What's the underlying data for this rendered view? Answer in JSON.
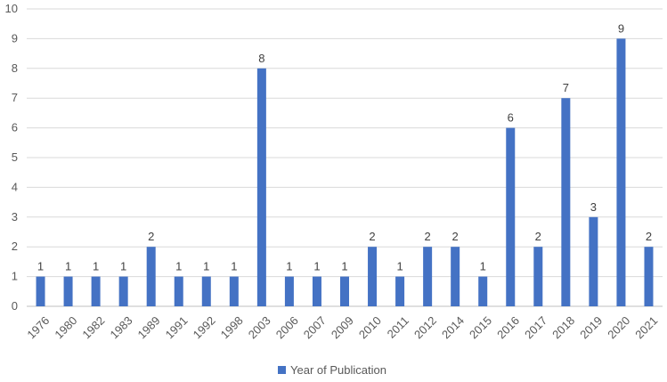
{
  "chart_data": {
    "type": "bar",
    "categories": [
      "1976",
      "1980",
      "1982",
      "1983",
      "1989",
      "1991",
      "1992",
      "1998",
      "2003",
      "2006",
      "2007",
      "2009",
      "2010",
      "2011",
      "2012",
      "2014",
      "2015",
      "2016",
      "2017",
      "2018",
      "2019",
      "2020",
      "2021"
    ],
    "series": [
      {
        "name": "Year of Publication",
        "values": [
          1,
          1,
          1,
          1,
          2,
          1,
          1,
          1,
          8,
          1,
          1,
          1,
          2,
          1,
          2,
          2,
          1,
          6,
          2,
          7,
          3,
          9,
          2
        ],
        "color": "#4472C4"
      }
    ],
    "ylim": [
      0,
      10
    ],
    "yticks": [
      0,
      1,
      2,
      3,
      4,
      5,
      6,
      7,
      8,
      9,
      10
    ],
    "grid": true,
    "legend": "bottom",
    "data_labels": true
  }
}
